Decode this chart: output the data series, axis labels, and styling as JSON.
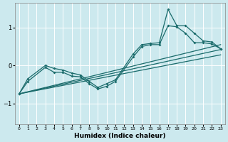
{
  "xlabel": "Humidex (Indice chaleur)",
  "xlim": [
    -0.5,
    23.5
  ],
  "ylim": [
    -1.55,
    1.65
  ],
  "yticks": [
    -1,
    0,
    1
  ],
  "xticks": [
    0,
    1,
    2,
    3,
    4,
    5,
    6,
    7,
    8,
    9,
    10,
    11,
    12,
    13,
    14,
    15,
    16,
    17,
    18,
    19,
    20,
    21,
    22,
    23
  ],
  "background_color": "#cce9ee",
  "grid_color": "#b0d8e0",
  "line_color": "#1a6b6b",
  "line1_x": [
    0,
    1,
    3,
    4,
    5,
    6,
    7,
    8,
    9,
    10,
    11,
    13,
    14,
    15,
    16,
    17,
    18,
    19,
    20,
    21,
    22,
    23
  ],
  "line1_y": [
    -0.75,
    -0.42,
    -0.05,
    -0.18,
    -0.18,
    -0.28,
    -0.3,
    -0.48,
    -0.62,
    -0.55,
    -0.42,
    0.22,
    0.5,
    0.55,
    0.55,
    1.05,
    1.02,
    0.85,
    0.6,
    0.6,
    0.57,
    0.44
  ],
  "line2_x": [
    0,
    1,
    3,
    4,
    5,
    6,
    7,
    8,
    9,
    10,
    11,
    13,
    14,
    15,
    16,
    17,
    18,
    19,
    20,
    21,
    22,
    23
  ],
  "line2_y": [
    -0.75,
    -0.35,
    0.0,
    -0.08,
    -0.12,
    -0.2,
    -0.25,
    -0.42,
    -0.58,
    -0.48,
    -0.38,
    0.3,
    0.55,
    0.58,
    0.6,
    1.48,
    1.05,
    1.05,
    0.85,
    0.65,
    0.62,
    0.44
  ],
  "line3_x": [
    0,
    23
  ],
  "line3_y": [
    -0.75,
    0.55
  ],
  "line4_x": [
    0,
    23
  ],
  "line4_y": [
    -0.75,
    0.42
  ],
  "line5_x": [
    0,
    23
  ],
  "line5_y": [
    -0.75,
    0.28
  ]
}
